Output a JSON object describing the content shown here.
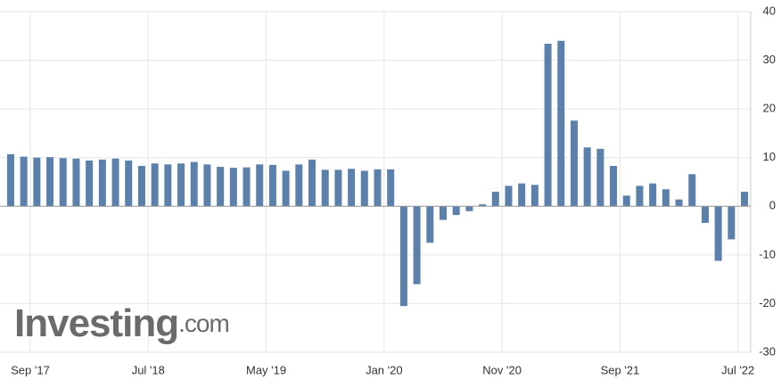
{
  "chart_data": {
    "type": "bar",
    "categories": [
      null,
      null,
      "Sep '17",
      null,
      null,
      null,
      null,
      null,
      null,
      null,
      null,
      "Jul '18",
      null,
      null,
      null,
      null,
      null,
      null,
      null,
      null,
      "May '19",
      null,
      null,
      null,
      null,
      null,
      null,
      null,
      null,
      "Jan '20",
      null,
      null,
      null,
      null,
      null,
      null,
      null,
      null,
      "Nov '20",
      null,
      null,
      null,
      null,
      null,
      null,
      null,
      null,
      "Sep '21",
      null,
      null,
      null,
      null,
      null,
      null,
      null,
      null,
      "Jul '22"
    ],
    "values": [
      10.7,
      10.2,
      10,
      10.1,
      9.9,
      9.8,
      9.4,
      9.6,
      9.8,
      9.4,
      8.3,
      8.8,
      8.6,
      8.8,
      9.1,
      8.6,
      8.1,
      7.9,
      8.0,
      8.6,
      8.5,
      7.3,
      8.6,
      9.6,
      7.5,
      7.5,
      7.7,
      7.3,
      7.6,
      7.6,
      -20.5,
      -16,
      -7.5,
      -2.8,
      -1.8,
      -1,
      0.4,
      3,
      4.2,
      4.7,
      4.4,
      33.4,
      34,
      17.6,
      12.1,
      11.8,
      8.3,
      2.2,
      4.2,
      4.7,
      3.5,
      1.4,
      6.6,
      -3.4,
      -11.2,
      -6.8,
      3
    ],
    "color": "#5b80ab",
    "ylim": [
      -30,
      40
    ],
    "yticks": [
      -30,
      -20,
      -10,
      0,
      10,
      20,
      30,
      40
    ],
    "grid": true,
    "watermark": "Investing",
    "watermark_suffix": ".com"
  }
}
